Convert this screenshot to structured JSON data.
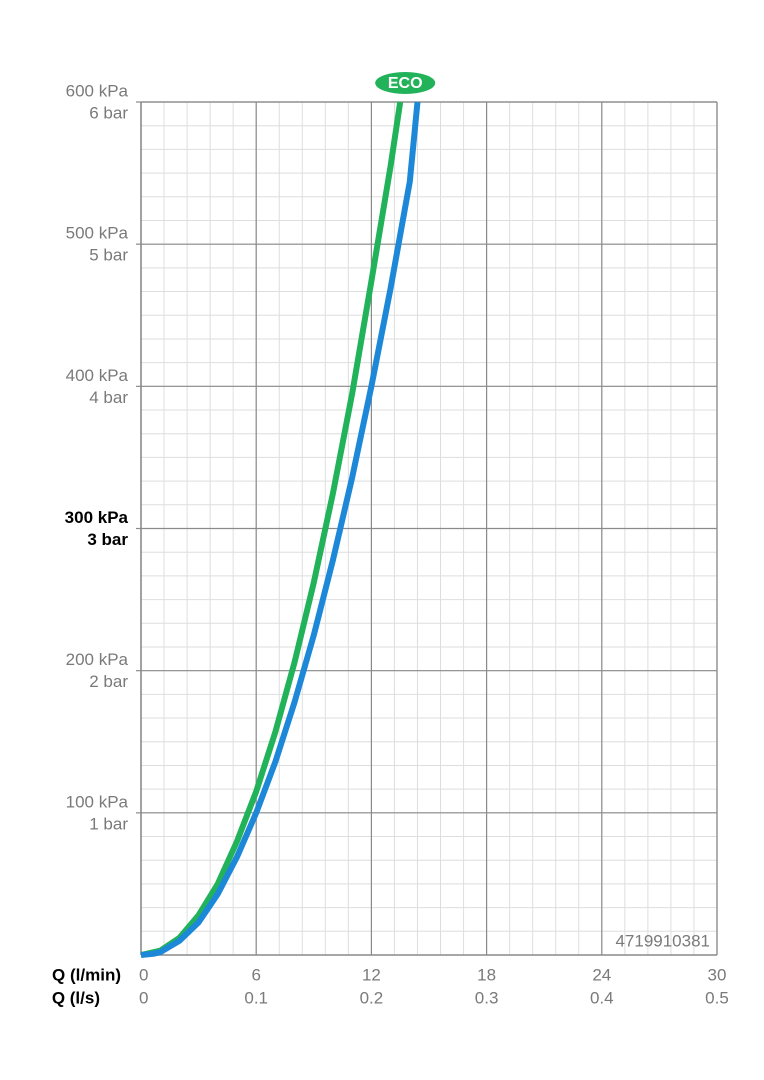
{
  "chart_data": {
    "type": "line",
    "xlabel": "Q (l/min)",
    "x2label": "Q (l/s)",
    "xlim": [
      0,
      30
    ],
    "xticks": [
      0,
      6,
      12,
      18,
      24,
      30
    ],
    "x2lim": [
      0,
      0.5
    ],
    "x2ticks": [
      0,
      0.1,
      0.2,
      0.3,
      0.4,
      0.5
    ],
    "ylim": [
      0,
      600
    ],
    "yticks": [
      {
        "value": 100,
        "label": "100 kPa"
      },
      {
        "value": 200,
        "label": "200 kPa"
      },
      {
        "value": 300,
        "label": "300 kPa"
      },
      {
        "value": 400,
        "label": "400 kPa"
      },
      {
        "value": 500,
        "label": "500 kPa"
      },
      {
        "value": 600,
        "label": "600 kPa"
      }
    ],
    "y2lim": [
      0,
      6
    ],
    "y2ticks": [
      {
        "value": 1,
        "label": "1 bar"
      },
      {
        "value": 2,
        "label": "2 bar"
      },
      {
        "value": 3,
        "label": "3 bar"
      },
      {
        "value": 4,
        "label": "4 bar"
      },
      {
        "value": 5,
        "label": "5 bar"
      },
      {
        "value": 6,
        "label": "6 bar"
      }
    ],
    "bold_ytick": 300,
    "grid": true,
    "annotation": "4719910381",
    "series": [
      {
        "name": "ECO",
        "color": "#22b35a",
        "x": [
          0,
          1,
          2,
          3,
          4,
          5,
          6,
          7,
          8,
          9,
          10,
          11,
          12,
          13,
          13.5
        ],
        "values": [
          0,
          3,
          12,
          28,
          50,
          80,
          115,
          157,
          206,
          262,
          325,
          395,
          474,
          555,
          600
        ]
      },
      {
        "color": "#1e88d8",
        "x": [
          0,
          0.7,
          1,
          2,
          3,
          4,
          5,
          6,
          7,
          8,
          9,
          10,
          11,
          12,
          13,
          14,
          14.4
        ],
        "values": [
          0,
          1,
          2,
          10,
          23,
          43,
          69,
          100,
          136,
          178,
          225,
          278,
          336,
          400,
          469,
          544,
          600
        ]
      }
    ]
  }
}
